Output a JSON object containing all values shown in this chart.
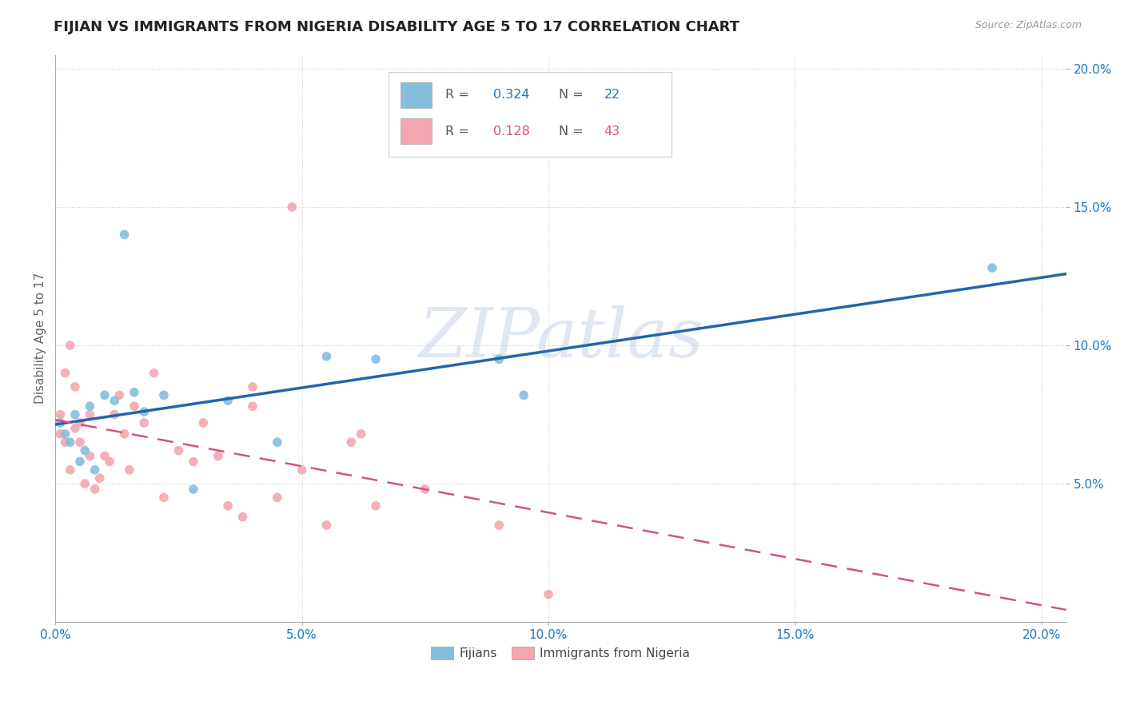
{
  "title": "FIJIAN VS IMMIGRANTS FROM NIGERIA DISABILITY AGE 5 TO 17 CORRELATION CHART",
  "source": "Source: ZipAtlas.com",
  "ylabel": "Disability Age 5 to 17",
  "xlim": [
    0.0,
    0.205
  ],
  "ylim": [
    0.0,
    0.205
  ],
  "xticks": [
    0.0,
    0.05,
    0.1,
    0.15,
    0.2
  ],
  "yticks": [
    0.05,
    0.1,
    0.15,
    0.2
  ],
  "xticklabels": [
    "0.0%",
    "5.0%",
    "10.0%",
    "15.0%",
    "20.0%"
  ],
  "yticklabels": [
    "5.0%",
    "10.0%",
    "15.0%",
    "20.0%"
  ],
  "fijian_color": "#85bedd",
  "nigeria_color": "#f4a6b0",
  "fijian_line_color": "#2166ac",
  "nigeria_line_color": "#d4547a",
  "fijian_label": "Fijians",
  "nigeria_label": "Immigrants from Nigeria",
  "R_fijian": "0.324",
  "N_fijian": "22",
  "R_nigeria": "0.128",
  "N_nigeria": "43",
  "legend_R_color": "#1a78c2",
  "legend_N_color": "#1a78c2",
  "legend_R2_color": "#d4547a",
  "legend_N2_color": "#d4547a",
  "fijian_x": [
    0.001,
    0.002,
    0.003,
    0.004,
    0.005,
    0.006,
    0.007,
    0.008,
    0.01,
    0.012,
    0.014,
    0.016,
    0.018,
    0.022,
    0.028,
    0.035,
    0.045,
    0.055,
    0.065,
    0.09,
    0.095,
    0.19
  ],
  "fijian_y": [
    0.072,
    0.068,
    0.065,
    0.075,
    0.058,
    0.062,
    0.078,
    0.055,
    0.082,
    0.08,
    0.14,
    0.083,
    0.076,
    0.082,
    0.048,
    0.08,
    0.065,
    0.096,
    0.095,
    0.095,
    0.082,
    0.128
  ],
  "nigeria_x": [
    0.001,
    0.001,
    0.002,
    0.002,
    0.003,
    0.003,
    0.004,
    0.004,
    0.005,
    0.005,
    0.006,
    0.007,
    0.007,
    0.008,
    0.009,
    0.01,
    0.011,
    0.012,
    0.013,
    0.014,
    0.015,
    0.016,
    0.018,
    0.02,
    0.022,
    0.025,
    0.028,
    0.03,
    0.033,
    0.035,
    0.038,
    0.04,
    0.04,
    0.045,
    0.048,
    0.05,
    0.055,
    0.06,
    0.062,
    0.065,
    0.075,
    0.09,
    0.1
  ],
  "nigeria_y": [
    0.068,
    0.075,
    0.065,
    0.09,
    0.055,
    0.1,
    0.07,
    0.085,
    0.065,
    0.072,
    0.05,
    0.06,
    0.075,
    0.048,
    0.052,
    0.06,
    0.058,
    0.075,
    0.082,
    0.068,
    0.055,
    0.078,
    0.072,
    0.09,
    0.045,
    0.062,
    0.058,
    0.072,
    0.06,
    0.042,
    0.038,
    0.085,
    0.078,
    0.045,
    0.15,
    0.055,
    0.035,
    0.065,
    0.068,
    0.042,
    0.048,
    0.035,
    0.01
  ],
  "watermark": "ZIPatlas",
  "background_color": "#ffffff",
  "title_fontsize": 13,
  "tick_fontsize": 11,
  "axis_label_fontsize": 11
}
